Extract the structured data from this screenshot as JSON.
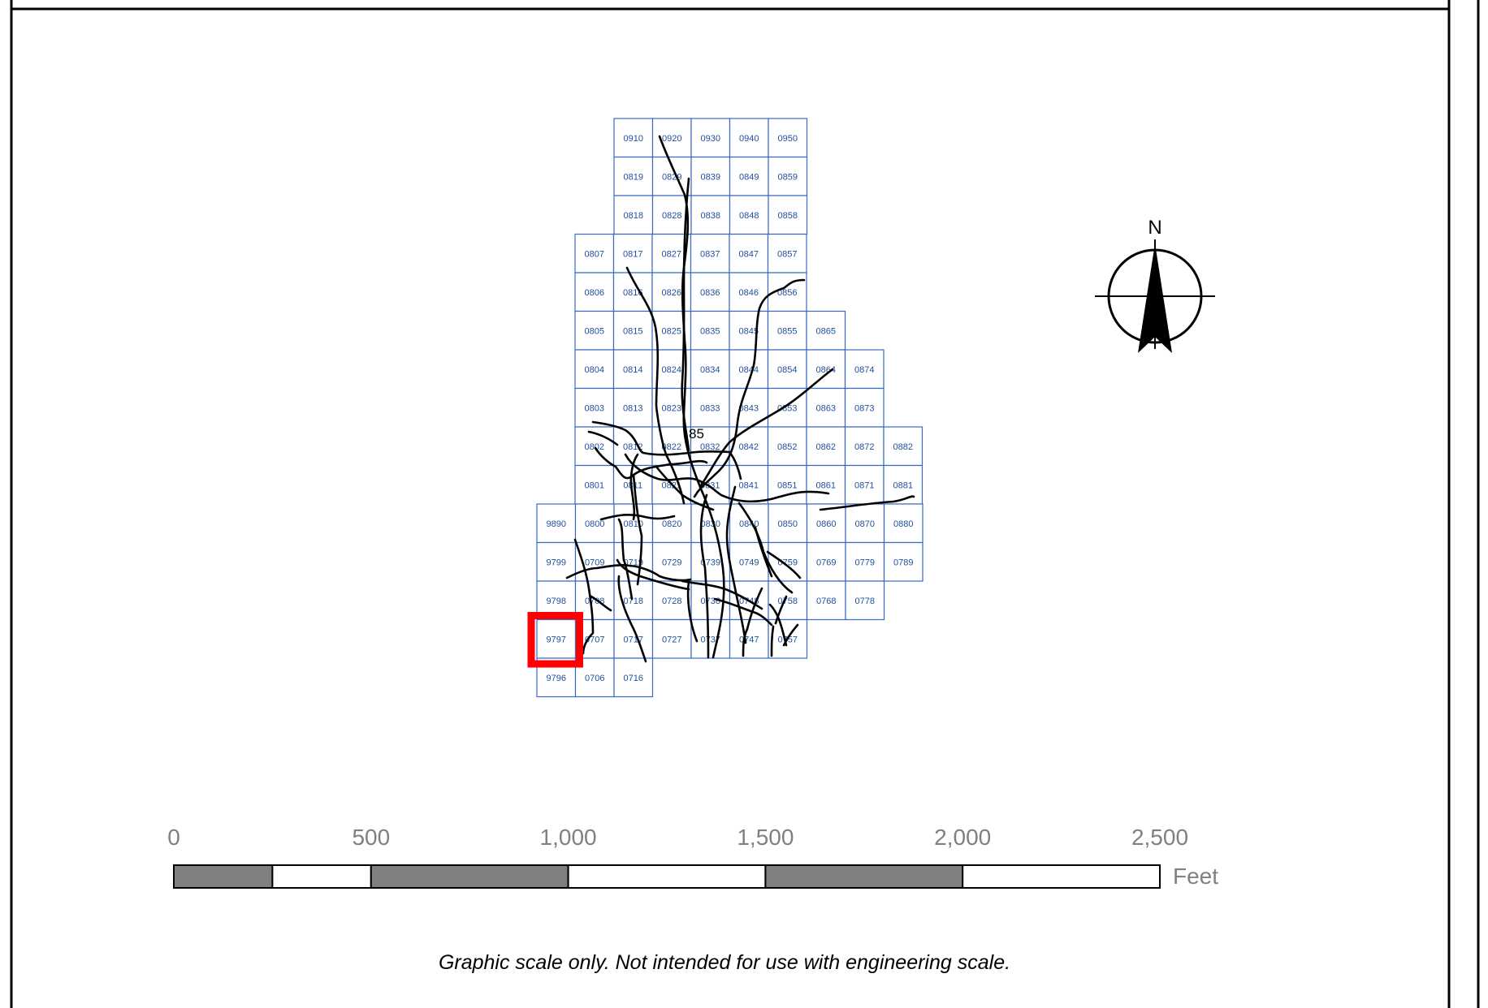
{
  "map": {
    "colors": {
      "grid_line": "#3a6bc4",
      "grid_text": "#1f4f9c",
      "highlight": "#ff0000",
      "road": "#000000",
      "scale_dark": "#808080",
      "scale_light": "#ffffff",
      "scale_text": "#808080"
    },
    "tiles": [
      [
        "0910",
        "0920",
        "0930",
        "0940",
        "0950"
      ],
      [
        "0819",
        "0829",
        "0839",
        "0849",
        "0859"
      ],
      [
        "0818",
        "0828",
        "0838",
        "0848",
        "0858"
      ],
      [
        "0807",
        "0817",
        "0827",
        "0837",
        "0847",
        "0857"
      ],
      [
        "0806",
        "0816",
        "0826",
        "0836",
        "0846",
        "0856"
      ],
      [
        "0805",
        "0815",
        "0825",
        "0835",
        "0845",
        "0855",
        "0865"
      ],
      [
        "0804",
        "0814",
        "0824",
        "0834",
        "0844",
        "0854",
        "0864",
        "0874"
      ],
      [
        "0803",
        "0813",
        "0823",
        "0833",
        "0843",
        "0853",
        "0863",
        "0873"
      ],
      [
        "0802",
        "0812",
        "0822",
        "0832",
        "0842",
        "0852",
        "0862",
        "0872",
        "0882"
      ],
      [
        "0801",
        "0811",
        "0821",
        "0831",
        "0841",
        "0851",
        "0861",
        "0871",
        "0881"
      ],
      [
        "9890",
        "0800",
        "0810",
        "0820",
        "0830",
        "0840",
        "0850",
        "0860",
        "0870",
        "0880"
      ],
      [
        "9799",
        "0709",
        "0719",
        "0729",
        "0739",
        "0749",
        "0759",
        "0769",
        "0779",
        "0789"
      ],
      [
        "9798",
        "0708",
        "0718",
        "0728",
        "0738",
        "0748",
        "0758",
        "0768",
        "0778"
      ],
      [
        "9797",
        "0707",
        "0717",
        "0727",
        "0737",
        "0747",
        "0757"
      ],
      [
        "9796",
        "0706",
        "0716"
      ]
    ],
    "highlighted_tile": "9797",
    "road_label": "85"
  },
  "north_arrow": {
    "label": "N"
  },
  "scale_bar": {
    "ticks": [
      "0",
      "500",
      "1,000",
      "1,500",
      "2,000",
      "2,500"
    ],
    "unit": "Feet"
  },
  "footer_note": "Graphic scale only.  Not intended for use with engineering scale."
}
